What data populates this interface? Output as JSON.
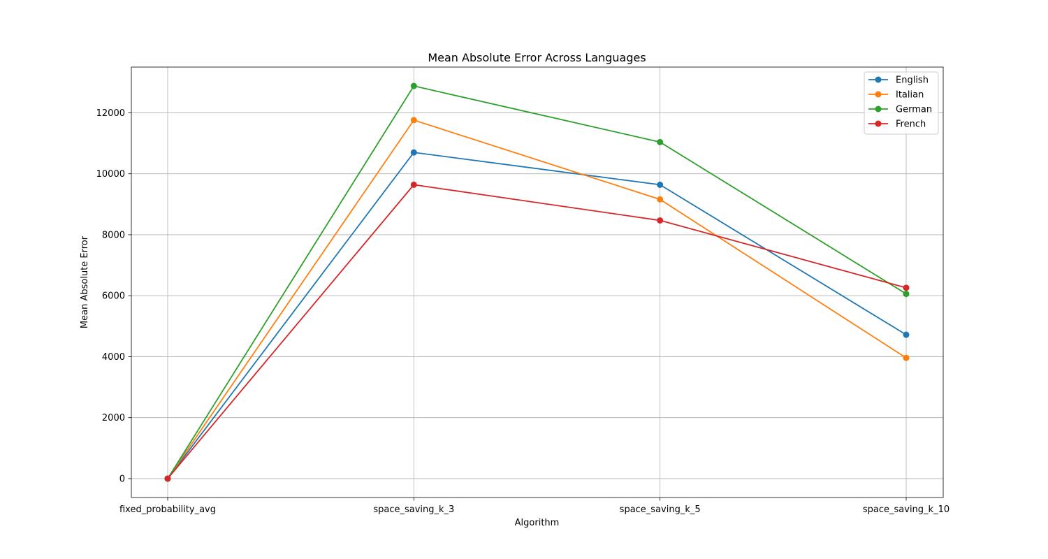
{
  "chart_data": {
    "type": "line",
    "title": "Mean Absolute Error Across Languages",
    "xlabel": "Algorithm",
    "ylabel": "Mean Absolute Error",
    "categories": [
      "fixed_probability_avg",
      "space_saving_k_3",
      "space_saving_k_5",
      "space_saving_k_10"
    ],
    "ylim": [
      -620,
      13500
    ],
    "yticks": [
      0,
      2000,
      4000,
      6000,
      8000,
      10000,
      12000
    ],
    "grid": true,
    "legend_position": "top-right",
    "markers": "circle",
    "series": [
      {
        "name": "English",
        "color": "#1f77b4",
        "values": [
          0,
          10700,
          9640,
          4720
        ]
      },
      {
        "name": "Italian",
        "color": "#ff7f0e",
        "values": [
          0,
          11760,
          9160,
          3960
        ]
      },
      {
        "name": "German",
        "color": "#2ca02c",
        "values": [
          0,
          12880,
          11040,
          6060
        ]
      },
      {
        "name": "French",
        "color": "#d62728",
        "values": [
          0,
          9640,
          8470,
          6260
        ]
      }
    ]
  }
}
